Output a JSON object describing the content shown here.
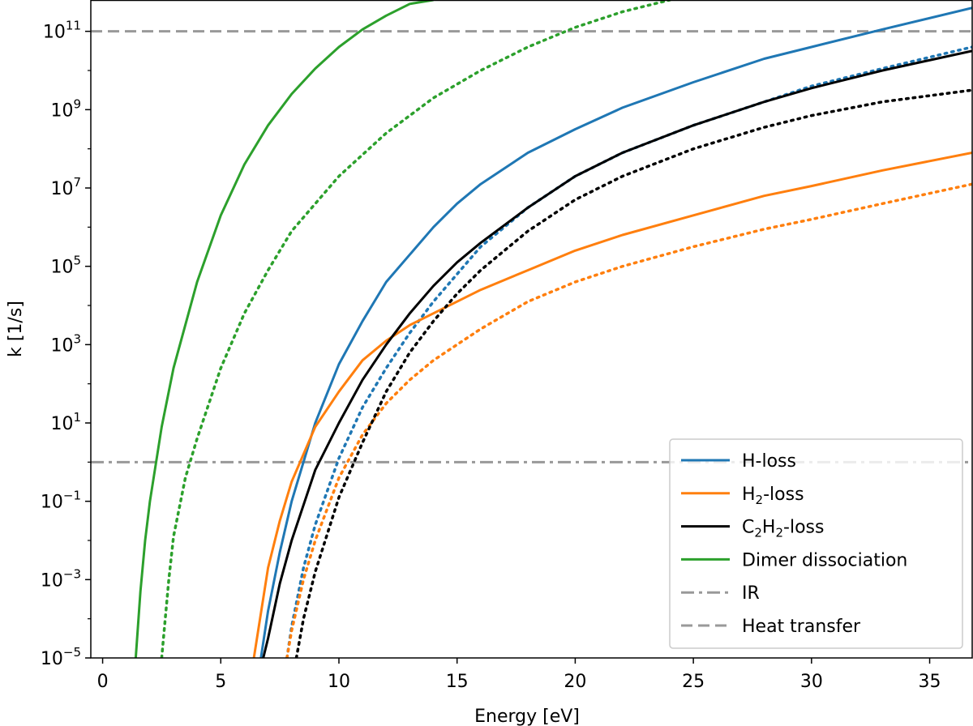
{
  "chart_data": {
    "type": "line",
    "title": "",
    "xlabel": "Energy [eV]",
    "ylabel": "k [1/s]",
    "xlim": [
      -0.5,
      36.8
    ],
    "ylim_log10": [
      -5,
      11.8
    ],
    "yscale": "log",
    "grid": false,
    "legend_position": "bottom-right",
    "x_ticks": [
      {
        "value": 0,
        "label": "0"
      },
      {
        "value": 5,
        "label": "5"
      },
      {
        "value": 10,
        "label": "10"
      },
      {
        "value": 15,
        "label": "15"
      },
      {
        "value": 20,
        "label": "20"
      },
      {
        "value": 25,
        "label": "25"
      },
      {
        "value": 30,
        "label": "30"
      },
      {
        "value": 35,
        "label": "35"
      }
    ],
    "y_ticks": [
      {
        "log10": 11,
        "base": "10",
        "exp": "11"
      },
      {
        "log10": 9,
        "base": "10",
        "exp": "9"
      },
      {
        "log10": 7,
        "base": "10",
        "exp": "7"
      },
      {
        "log10": 5,
        "base": "10",
        "exp": "5"
      },
      {
        "log10": 3,
        "base": "10",
        "exp": "3"
      },
      {
        "log10": 1,
        "base": "10",
        "exp": "1"
      },
      {
        "log10": -1,
        "base": "10",
        "exp": "−1"
      },
      {
        "log10": -3,
        "base": "10",
        "exp": "−3"
      },
      {
        "log10": -5,
        "base": "10",
        "exp": "−5"
      }
    ],
    "series": [
      {
        "name": "H-loss (solid)",
        "color": "#1f77b4",
        "style": "solid",
        "in_legend": true,
        "x": [
          6.7,
          7,
          7.5,
          8,
          9,
          10,
          11,
          12,
          13,
          14,
          15,
          16,
          18,
          20,
          22,
          25,
          28,
          30,
          33,
          36.8
        ],
        "log10k": [
          -5,
          -3.8,
          -2.3,
          -1.0,
          1.0,
          2.5,
          3.6,
          4.6,
          5.3,
          6.0,
          6.6,
          7.1,
          7.9,
          8.5,
          9.05,
          9.7,
          10.3,
          10.6,
          11.05,
          11.6
        ]
      },
      {
        "name": "H-loss (dotted)",
        "color": "#1f77b4",
        "style": "dotted",
        "in_legend": false,
        "x": [
          7.8,
          8,
          8.5,
          9,
          10,
          11,
          12,
          13,
          14,
          15,
          16,
          18,
          20,
          22,
          25,
          28,
          30,
          33,
          36.8
        ],
        "log10k": [
          -5,
          -4.2,
          -2.7,
          -1.6,
          0.1,
          1.4,
          2.4,
          3.3,
          4.1,
          4.8,
          5.5,
          6.5,
          7.3,
          7.9,
          8.6,
          9.2,
          9.6,
          10.05,
          10.6
        ]
      },
      {
        "name": "H2-loss (solid)",
        "color": "#ff7f0e",
        "style": "solid",
        "in_legend": true,
        "x": [
          6.4,
          7,
          7.5,
          8,
          9,
          10,
          11,
          12,
          13,
          14,
          15,
          16,
          18,
          20,
          22,
          25,
          28,
          30,
          33,
          36.8
        ],
        "log10k": [
          -5,
          -2.7,
          -1.5,
          -0.5,
          0.9,
          1.8,
          2.6,
          3.1,
          3.5,
          3.8,
          4.1,
          4.4,
          4.9,
          5.4,
          5.8,
          6.3,
          6.8,
          7.05,
          7.45,
          7.9
        ]
      },
      {
        "name": "H2-loss (dotted)",
        "color": "#ff7f0e",
        "style": "dotted",
        "in_legend": false,
        "x": [
          7.8,
          8,
          8.5,
          9,
          10,
          11,
          12,
          13,
          14,
          15,
          16,
          18,
          20,
          22,
          25,
          28,
          30,
          33,
          36.8
        ],
        "log10k": [
          -5,
          -4.3,
          -3.0,
          -2.0,
          -0.4,
          0.7,
          1.5,
          2.1,
          2.6,
          3.0,
          3.4,
          4.1,
          4.6,
          5.0,
          5.5,
          5.95,
          6.2,
          6.6,
          7.1
        ]
      },
      {
        "name": "C2H2-loss (solid)",
        "color": "#000000",
        "style": "solid",
        "in_legend": true,
        "x": [
          6.8,
          7,
          7.5,
          8,
          9,
          10,
          11,
          12,
          13,
          14,
          15,
          16,
          18,
          20,
          22,
          25,
          28,
          30,
          33,
          36.8
        ],
        "log10k": [
          -5,
          -4.5,
          -3.1,
          -2.0,
          -0.2,
          1.0,
          2.1,
          3.0,
          3.8,
          4.5,
          5.1,
          5.6,
          6.5,
          7.3,
          7.9,
          8.6,
          9.2,
          9.55,
          10.0,
          10.5
        ]
      },
      {
        "name": "C2H2-loss (dotted)",
        "color": "#000000",
        "style": "dotted",
        "in_legend": false,
        "x": [
          8.2,
          8.5,
          9,
          10,
          11,
          12,
          13,
          14,
          15,
          16,
          18,
          20,
          22,
          25,
          28,
          30,
          33,
          36.8
        ],
        "log10k": [
          -5,
          -4.0,
          -2.8,
          -0.9,
          0.5,
          1.8,
          2.8,
          3.6,
          4.3,
          4.9,
          5.9,
          6.7,
          7.3,
          8.0,
          8.55,
          8.85,
          9.2,
          9.5
        ]
      },
      {
        "name": "Dimer dissociation (solid)",
        "color": "#2ca02c",
        "style": "solid",
        "in_legend": true,
        "x": [
          1.4,
          1.6,
          1.8,
          2,
          2.5,
          3,
          4,
          5,
          6,
          7,
          8,
          9,
          10,
          11,
          12,
          13,
          14
        ],
        "log10k": [
          -5,
          -3.3,
          -2.0,
          -1.0,
          0.9,
          2.4,
          4.6,
          6.3,
          7.6,
          8.6,
          9.4,
          10.05,
          10.6,
          11.05,
          11.4,
          11.7,
          11.8
        ]
      },
      {
        "name": "Dimer dissociation (dotted)",
        "color": "#2ca02c",
        "style": "dotted",
        "in_legend": false,
        "x": [
          2.5,
          2.8,
          3,
          3.5,
          4,
          5,
          6,
          7,
          8,
          10,
          12,
          14,
          16,
          18,
          20,
          22,
          24
        ],
        "log10k": [
          -5,
          -3.0,
          -1.9,
          -0.4,
          0.6,
          2.4,
          3.8,
          4.9,
          5.9,
          7.3,
          8.4,
          9.3,
          10.0,
          10.6,
          11.1,
          11.5,
          11.8
        ]
      }
    ],
    "reference_lines": [
      {
        "name": "IR",
        "log10k": 0,
        "color": "#999999",
        "style": "dashdot"
      },
      {
        "name": "Heat transfer",
        "log10k": 11,
        "color": "#999999",
        "style": "dashed"
      }
    ],
    "legend": [
      {
        "key": "h-loss",
        "label": "H-loss",
        "color": "#1f77b4",
        "style": "solid"
      },
      {
        "key": "h2-loss",
        "label_parts": [
          "H",
          "2",
          "-loss"
        ],
        "color": "#ff7f0e",
        "style": "solid"
      },
      {
        "key": "c2h2-loss",
        "label_parts": [
          "C",
          "2",
          "H",
          "2",
          "-loss"
        ],
        "color": "#000000",
        "style": "solid"
      },
      {
        "key": "dimer-dissociation",
        "label": "Dimer dissociation",
        "color": "#2ca02c",
        "style": "solid"
      },
      {
        "key": "ir",
        "label": "IR",
        "color": "#999999",
        "style": "dashdot"
      },
      {
        "key": "heat-transfer",
        "label": "Heat transfer",
        "color": "#999999",
        "style": "dashed"
      }
    ]
  }
}
